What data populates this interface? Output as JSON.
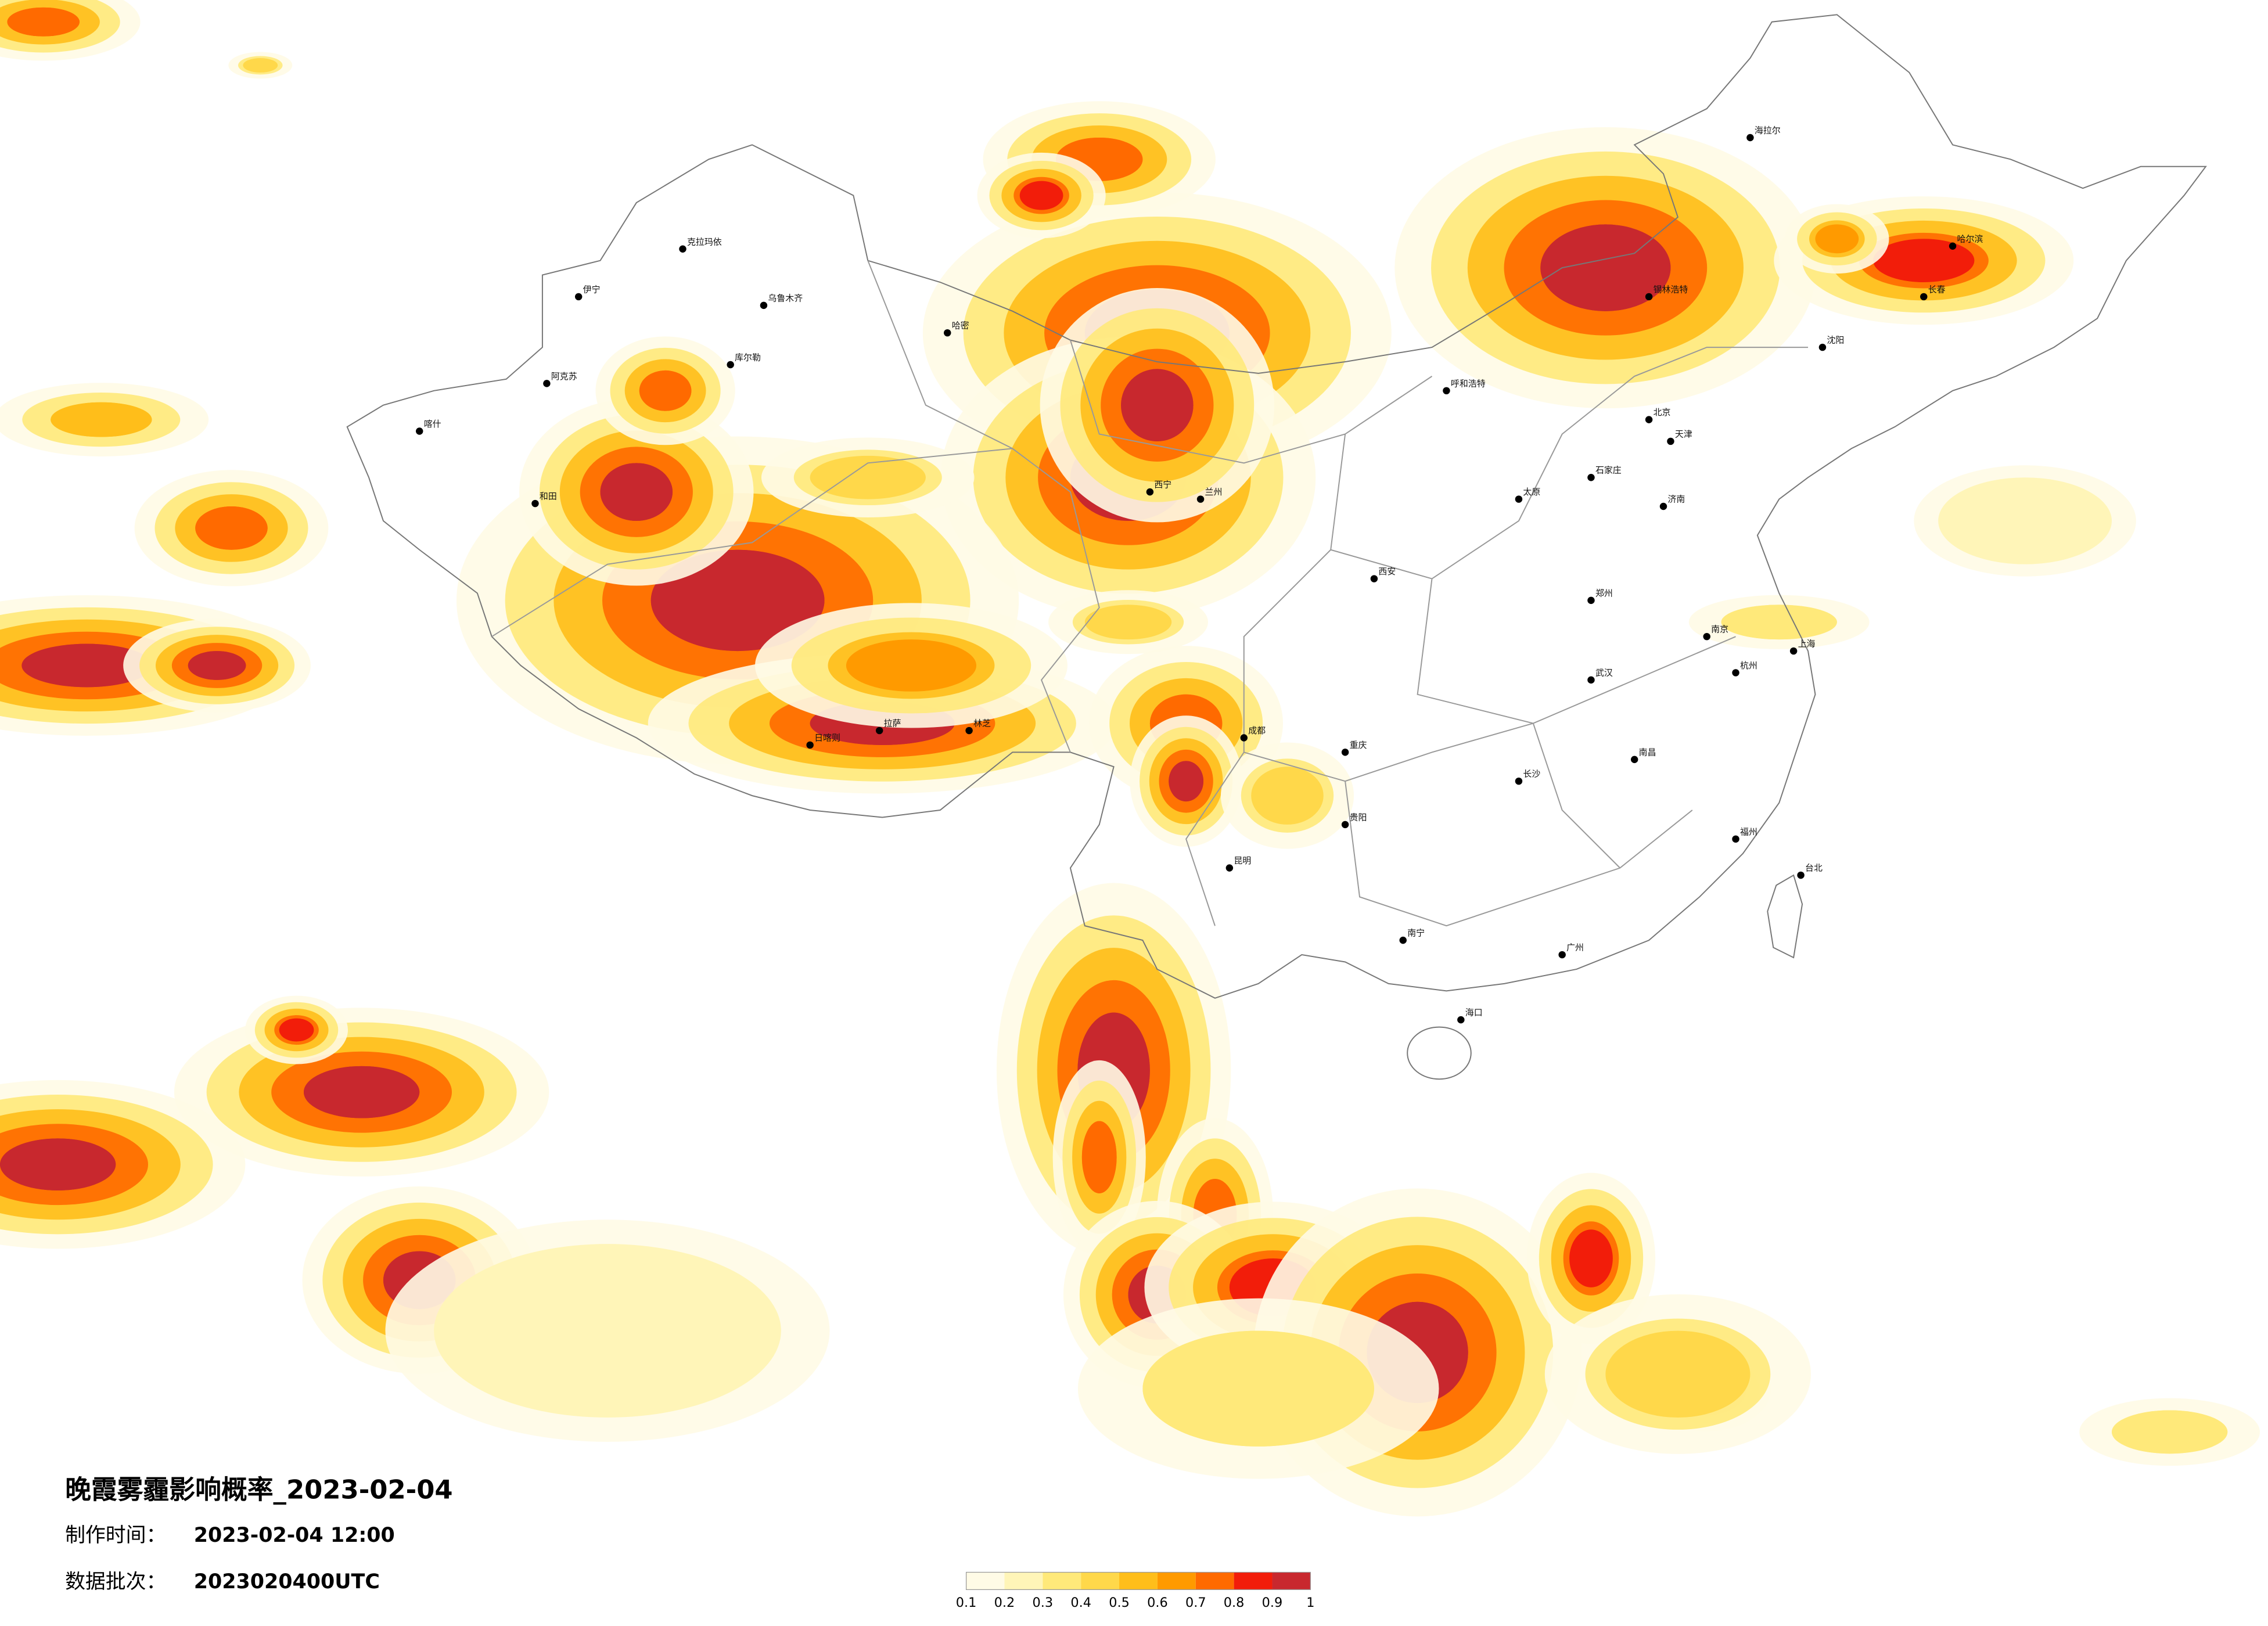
{
  "title": "晚霞雾霾影响概率_2023-02-04",
  "made_label": "制作时间：",
  "made": "2023-02-04 12:00",
  "batch_label": "数据批次：",
  "batch": "2023020400UTC",
  "legend": {
    "ticks": [
      0.1,
      0.2,
      0.3,
      0.4,
      0.5,
      0.6,
      0.7,
      0.8,
      0.9,
      1
    ],
    "colors": [
      "#fffbe6",
      "#fff5b8",
      "#ffe97a",
      "#ffd84a",
      "#ffbe1a",
      "#ff9a00",
      "#ff6a00",
      "#f21d0a",
      "#c8282e"
    ]
  },
  "cities": [
    "乌鲁木齐",
    "克拉玛依",
    "伊宁",
    "哈密",
    "喀什",
    "和田",
    "阿克苏",
    "库尔勒",
    "拉萨",
    "日喀则",
    "林芝",
    "西宁",
    "兰州",
    "呼和浩特",
    "北京",
    "天津",
    "石家庄",
    "太原",
    "郑州",
    "西安",
    "成都",
    "重庆",
    "昆明",
    "贵阳",
    "南宁",
    "广州",
    "长沙",
    "武汉",
    "南昌",
    "福州",
    "杭州",
    "上海",
    "南京",
    "济南",
    "沈阳",
    "长春",
    "哈尔滨",
    "海口",
    "台北",
    "锡林浩特",
    "海拉尔"
  ]
}
